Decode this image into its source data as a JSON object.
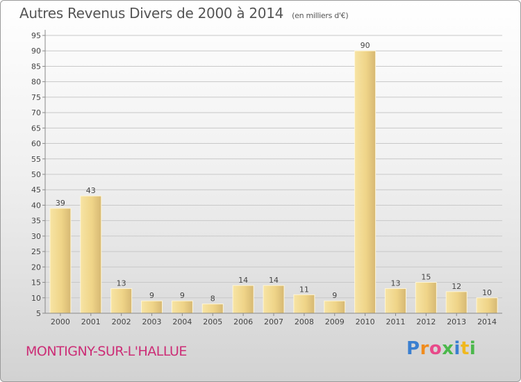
{
  "chart_data": {
    "type": "bar",
    "title": "Autres Revenus Divers de 2000 à 2014",
    "subtitle": "(en milliers d'€)",
    "xlabel": "",
    "ylabel": "",
    "categories": [
      "2000",
      "2001",
      "2002",
      "2003",
      "2004",
      "2005",
      "2006",
      "2007",
      "2008",
      "2009",
      "2010",
      "2011",
      "2012",
      "2013",
      "2014"
    ],
    "values": [
      39,
      43,
      13,
      9,
      9,
      8,
      14,
      14,
      11,
      9,
      90,
      13,
      15,
      12,
      10
    ],
    "ylim": [
      5,
      95
    ],
    "yticks": [
      5,
      10,
      15,
      20,
      25,
      30,
      35,
      40,
      45,
      50,
      55,
      60,
      65,
      70,
      75,
      80,
      85,
      90,
      95
    ],
    "grid": true,
    "legend": "none",
    "colors": {
      "bar_light": "#f7e09a",
      "bar_dark": "#c8a860",
      "grid": "#c8c8c8"
    }
  },
  "footer": {
    "city": "MONTIGNY-SUR-L'HALLUE",
    "brand": "Proxiti"
  },
  "colors": {
    "city": "#cc2d76",
    "brand_letters": [
      "#3a7fd0",
      "#f08c1e",
      "#e84a8a",
      "#4bb84b",
      "#3a7fd0",
      "#f0b81e",
      "#4bb84b"
    ]
  }
}
